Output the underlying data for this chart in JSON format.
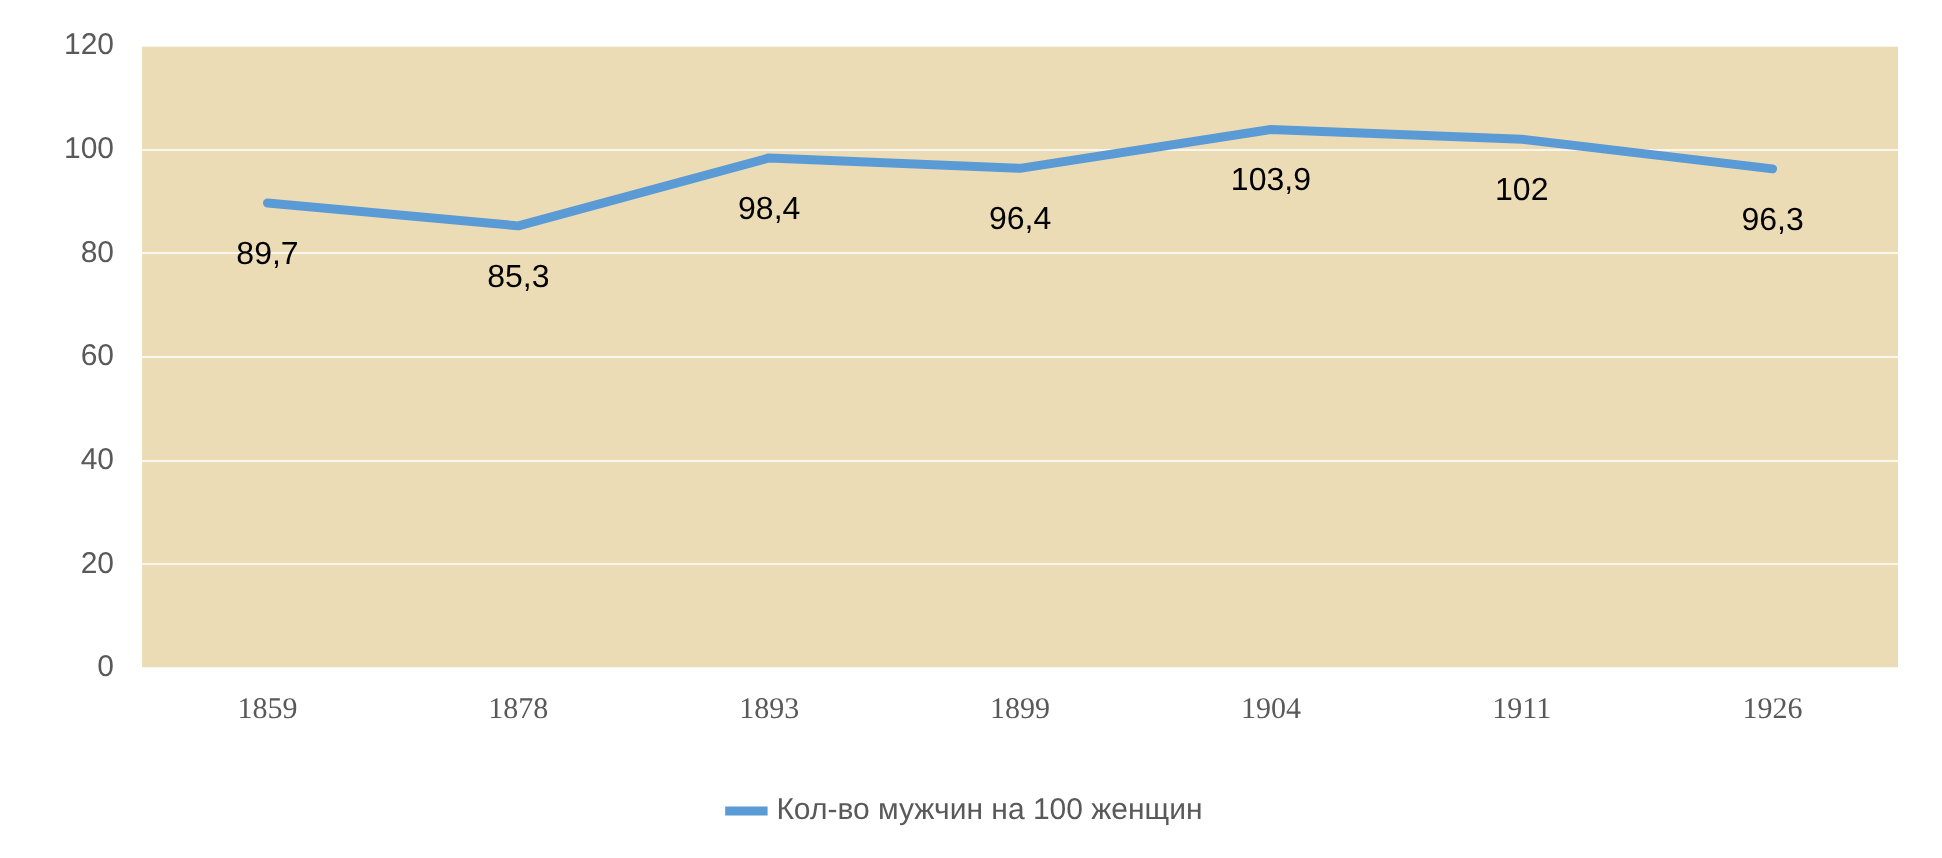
{
  "chart_data": {
    "type": "line",
    "categories": [
      "1859",
      "1878",
      "1893",
      "1899",
      "1904",
      "1911",
      "1926"
    ],
    "series": [
      {
        "name": "Кол-во мужчин на 100 женщин",
        "color": "#5b9bd5",
        "values": [
          89.7,
          85.3,
          98.4,
          96.4,
          103.9,
          102,
          96.3
        ],
        "value_labels": [
          "89,7",
          "85,3",
          "98,4",
          "96,4",
          "103,9",
          "102",
          "96,3"
        ]
      }
    ],
    "ylim": [
      0,
      120
    ],
    "yticks": [
      0,
      20,
      40,
      60,
      80,
      100,
      120
    ],
    "grid": "y",
    "legend": "bottom",
    "marker": "none",
    "line_style": "solid"
  }
}
